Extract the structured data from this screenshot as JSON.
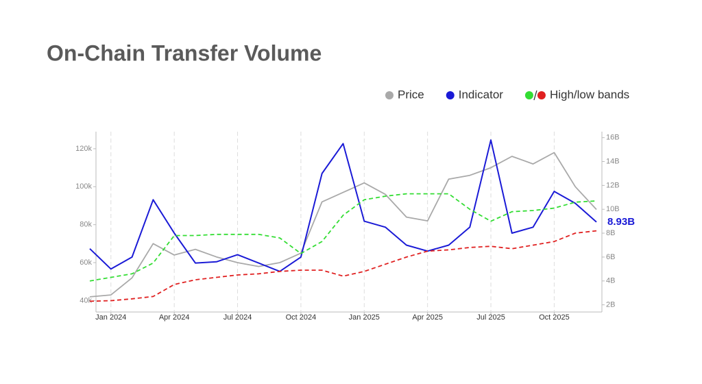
{
  "chart_data": {
    "type": "line",
    "title": "On-Chain Transfer Volume",
    "x": [
      "2023-12",
      "2024-01",
      "2024-02",
      "2024-03",
      "2024-04",
      "2024-05",
      "2024-06",
      "2024-07",
      "2024-08",
      "2024-09",
      "2024-10",
      "2024-11",
      "2024-12",
      "2025-01",
      "2025-02",
      "2025-03",
      "2025-04",
      "2025-05",
      "2025-06",
      "2025-07",
      "2025-08",
      "2025-09",
      "2025-10",
      "2025-11",
      "2025-12"
    ],
    "xlim": [
      "2023-12",
      "2025-12"
    ],
    "xticks": [
      {
        "value": "2024-01",
        "label": "Jan 2024"
      },
      {
        "value": "2024-04",
        "label": "Apr 2024"
      },
      {
        "value": "2024-07",
        "label": "Jul 2024"
      },
      {
        "value": "2024-10",
        "label": "Oct 2024"
      },
      {
        "value": "2025-01",
        "label": "Jan 2025"
      },
      {
        "value": "2025-04",
        "label": "Apr 2025"
      },
      {
        "value": "2025-07",
        "label": "Jul 2025"
      },
      {
        "value": "2025-10",
        "label": "Oct 2025"
      }
    ],
    "ylim": [
      34000,
      129000
    ],
    "yticks": [
      {
        "value": 40000,
        "label": "40k"
      },
      {
        "value": 60000,
        "label": "60k"
      },
      {
        "value": 80000,
        "label": "80k"
      },
      {
        "value": 100000,
        "label": "100k"
      },
      {
        "value": 120000,
        "label": "120k"
      }
    ],
    "y2lim": [
      1.4,
      16.5
    ],
    "y2ticks": [
      {
        "value": 2,
        "label": "2B"
      },
      {
        "value": 4,
        "label": "4B"
      },
      {
        "value": 6,
        "label": "6B"
      },
      {
        "value": 8,
        "label": "8B"
      },
      {
        "value": 10,
        "label": "10B"
      },
      {
        "value": 12,
        "label": "12B"
      },
      {
        "value": 14,
        "label": "14B"
      },
      {
        "value": 16,
        "label": "16B"
      }
    ],
    "grid": "x",
    "band_legend": "High/low bands",
    "series": [
      {
        "name": "Price",
        "color": "#a9a9a9",
        "values": [
          42000,
          43000,
          52000,
          70000,
          64000,
          67000,
          63000,
          60000,
          58000,
          60000,
          65000,
          92000,
          97000,
          102000,
          96000,
          84000,
          82000,
          104000,
          106000,
          110000,
          116000,
          112000,
          118000,
          100000,
          88000
        ]
      },
      {
        "name": "Indicator",
        "color": "#1a1ad6",
        "axis": "y2",
        "values": [
          6.7,
          5.0,
          6.0,
          10.8,
          8.0,
          5.5,
          5.6,
          6.2,
          5.5,
          4.8,
          6.0,
          13.0,
          15.5,
          9.0,
          8.5,
          7.0,
          6.5,
          7.0,
          8.5,
          15.8,
          8.0,
          8.5,
          11.5,
          10.5,
          8.93
        ],
        "value_labels": [
          null,
          null,
          null,
          null,
          null,
          null,
          null,
          null,
          null,
          null,
          null,
          null,
          null,
          null,
          null,
          null,
          null,
          null,
          null,
          null,
          null,
          null,
          null,
          null,
          "8.93B"
        ]
      },
      {
        "color": "#33dd33",
        "axis": "y2",
        "dashed": true,
        "values": [
          4.0,
          4.3,
          4.6,
          5.5,
          7.8,
          7.8,
          7.9,
          7.9,
          7.9,
          7.6,
          6.3,
          7.3,
          9.5,
          10.8,
          11.1,
          11.3,
          11.3,
          11.3,
          10.0,
          9.0,
          9.8,
          9.9,
          10.1,
          10.6,
          10.7
        ]
      },
      {
        "color": "#e02020",
        "axis": "y2",
        "dashed": true,
        "values": [
          2.3,
          2.35,
          2.5,
          2.7,
          3.7,
          4.1,
          4.3,
          4.5,
          4.6,
          4.8,
          4.9,
          4.9,
          4.4,
          4.8,
          5.4,
          6.0,
          6.5,
          6.6,
          6.8,
          6.9,
          6.7,
          7.0,
          7.3,
          8.0,
          8.2
        ]
      }
    ]
  }
}
